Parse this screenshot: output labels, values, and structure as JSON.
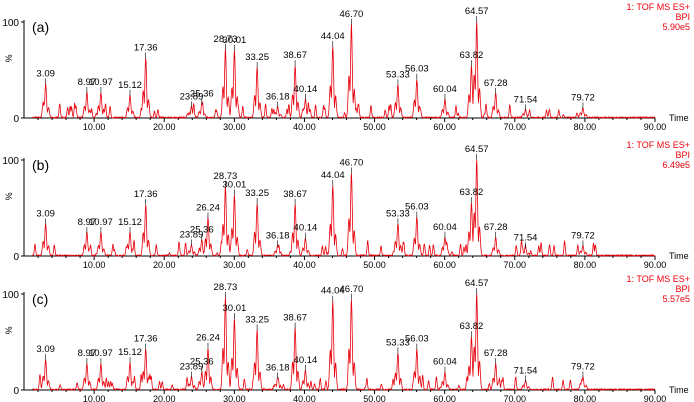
{
  "chart_data": [
    {
      "type": "line",
      "panel_label": "(a)",
      "instrument": "1: TOF MS ES+",
      "trace": "BPI",
      "intensity": "5.90e5",
      "xlabel": "Time",
      "ylabel": "%",
      "xlim": [
        0,
        90
      ],
      "ylim": [
        0,
        100
      ],
      "x_ticks": [
        "10.00",
        "20.00",
        "30.00",
        "40.00",
        "50.00",
        "60.00",
        "70.00",
        "80.00",
        "90.00"
      ],
      "y_ticks": [
        "0",
        "100"
      ],
      "line_color": "#e8000b",
      "peaks": [
        {
          "x": 3.09,
          "y": 35,
          "label": "3.09"
        },
        {
          "x": 8.97,
          "y": 26,
          "label": "8.97"
        },
        {
          "x": 10.97,
          "y": 26,
          "label": "10.97"
        },
        {
          "x": 15.12,
          "y": 23,
          "label": "15.12"
        },
        {
          "x": 17.36,
          "y": 62,
          "label": "17.36"
        },
        {
          "x": 23.89,
          "y": 11,
          "label": "23.89"
        },
        {
          "x": 25.36,
          "y": 14,
          "label": "25.36"
        },
        {
          "x": 28.73,
          "y": 71,
          "label": "28.73"
        },
        {
          "x": 30.01,
          "y": 70,
          "label": "30.01"
        },
        {
          "x": 33.25,
          "y": 52,
          "label": "33.25"
        },
        {
          "x": 36.18,
          "y": 11,
          "label": "36.18"
        },
        {
          "x": 38.67,
          "y": 54,
          "label": "38.67"
        },
        {
          "x": 40.14,
          "y": 19,
          "label": "40.14"
        },
        {
          "x": 44.04,
          "y": 74,
          "label": "44.04"
        },
        {
          "x": 46.7,
          "y": 97,
          "label": "46.70"
        },
        {
          "x": 53.33,
          "y": 34,
          "label": "53.33"
        },
        {
          "x": 56.03,
          "y": 40,
          "label": "56.03"
        },
        {
          "x": 60.04,
          "y": 19,
          "label": "60.04"
        },
        {
          "x": 63.82,
          "y": 54,
          "label": "63.82"
        },
        {
          "x": 64.57,
          "y": 100,
          "label": "64.57"
        },
        {
          "x": 67.28,
          "y": 25,
          "label": "67.28"
        },
        {
          "x": 71.54,
          "y": 8,
          "label": "71.54"
        },
        {
          "x": 79.72,
          "y": 10,
          "label": "79.72"
        }
      ]
    },
    {
      "type": "line",
      "panel_label": "(b)",
      "instrument": "1: TOF MS ES+",
      "trace": "BPI",
      "intensity": "6.49e5",
      "xlabel": "Time",
      "ylabel": "%",
      "xlim": [
        0,
        90
      ],
      "ylim": [
        0,
        100
      ],
      "x_ticks": [
        "10.00",
        "20.00",
        "30.00",
        "40.00",
        "50.00",
        "60.00",
        "70.00",
        "80.00",
        "90.00"
      ],
      "y_ticks": [
        "0",
        "100"
      ],
      "line_color": "#e8000b",
      "peaks": [
        {
          "x": 3.09,
          "y": 33,
          "label": "3.09"
        },
        {
          "x": 8.97,
          "y": 24,
          "label": "8.97"
        },
        {
          "x": 10.97,
          "y": 24,
          "label": "10.97"
        },
        {
          "x": 15.12,
          "y": 24,
          "label": "15.12"
        },
        {
          "x": 17.36,
          "y": 53,
          "label": "17.36"
        },
        {
          "x": 23.89,
          "y": 11,
          "label": "23.89"
        },
        {
          "x": 25.36,
          "y": 16,
          "label": "25.36"
        },
        {
          "x": 26.24,
          "y": 39,
          "label": "26.24"
        },
        {
          "x": 28.73,
          "y": 72,
          "label": "28.73"
        },
        {
          "x": 30.01,
          "y": 63,
          "label": "30.01"
        },
        {
          "x": 33.25,
          "y": 54,
          "label": "33.25"
        },
        {
          "x": 36.18,
          "y": 10,
          "label": "36.18"
        },
        {
          "x": 38.67,
          "y": 53,
          "label": "38.67"
        },
        {
          "x": 40.14,
          "y": 18,
          "label": "40.14"
        },
        {
          "x": 44.04,
          "y": 73,
          "label": "44.04"
        },
        {
          "x": 46.7,
          "y": 86,
          "label": "46.70"
        },
        {
          "x": 53.33,
          "y": 33,
          "label": "53.33"
        },
        {
          "x": 56.03,
          "y": 40,
          "label": "56.03"
        },
        {
          "x": 60.04,
          "y": 19,
          "label": "60.04"
        },
        {
          "x": 63.82,
          "y": 55,
          "label": "63.82"
        },
        {
          "x": 64.57,
          "y": 100,
          "label": "64.57"
        },
        {
          "x": 67.28,
          "y": 19,
          "label": "67.28"
        },
        {
          "x": 71.54,
          "y": 8,
          "label": "71.54"
        },
        {
          "x": 79.72,
          "y": 10,
          "label": "79.72"
        }
      ]
    },
    {
      "type": "line",
      "panel_label": "(c)",
      "instrument": "1: TOF MS ES+",
      "trace": "BPI",
      "intensity": "5.57e5",
      "xlabel": "Time",
      "ylabel": "%",
      "xlim": [
        0,
        90
      ],
      "ylim": [
        0,
        100
      ],
      "x_ticks": [
        "10.00",
        "20.00",
        "30.00",
        "40.00",
        "50.00",
        "60.00",
        "70.00",
        "80.00",
        "90.00"
      ],
      "y_ticks": [
        "0",
        "100"
      ],
      "line_color": "#e8000b",
      "peaks": [
        {
          "x": 3.09,
          "y": 31,
          "label": "3.09"
        },
        {
          "x": 8.97,
          "y": 27,
          "label": "8.97"
        },
        {
          "x": 10.97,
          "y": 27,
          "label": "10.97"
        },
        {
          "x": 15.12,
          "y": 28,
          "label": "15.12"
        },
        {
          "x": 17.36,
          "y": 42,
          "label": "17.36"
        },
        {
          "x": 23.89,
          "y": 13,
          "label": "23.89"
        },
        {
          "x": 25.36,
          "y": 18,
          "label": "25.36"
        },
        {
          "x": 26.24,
          "y": 43,
          "label": "26.24"
        },
        {
          "x": 28.73,
          "y": 96,
          "label": "28.73"
        },
        {
          "x": 30.01,
          "y": 74,
          "label": "30.01"
        },
        {
          "x": 33.25,
          "y": 62,
          "label": "33.25"
        },
        {
          "x": 36.18,
          "y": 12,
          "label": "36.18"
        },
        {
          "x": 38.67,
          "y": 64,
          "label": "38.67"
        },
        {
          "x": 40.14,
          "y": 20,
          "label": "40.14"
        },
        {
          "x": 44.04,
          "y": 92,
          "label": "44.04"
        },
        {
          "x": 46.7,
          "y": 94,
          "label": "46.70"
        },
        {
          "x": 53.33,
          "y": 38,
          "label": "53.33"
        },
        {
          "x": 56.03,
          "y": 42,
          "label": "56.03"
        },
        {
          "x": 60.04,
          "y": 18,
          "label": "60.04"
        },
        {
          "x": 63.82,
          "y": 55,
          "label": "63.82"
        },
        {
          "x": 64.57,
          "y": 100,
          "label": "64.57"
        },
        {
          "x": 67.28,
          "y": 27,
          "label": "67.28"
        },
        {
          "x": 71.54,
          "y": 9,
          "label": "71.54"
        },
        {
          "x": 79.72,
          "y": 13,
          "label": "79.72"
        }
      ]
    }
  ]
}
